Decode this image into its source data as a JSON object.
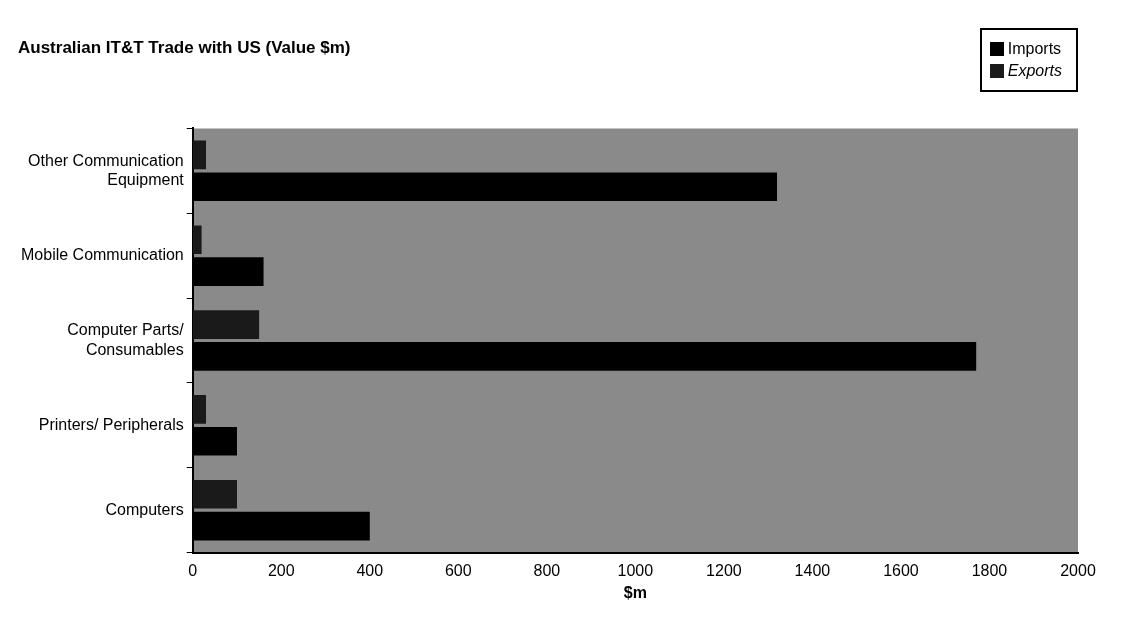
{
  "chart_data": {
    "type": "bar",
    "orientation": "horizontal",
    "title": "Australian IT&T Trade with US (Value $m)",
    "xlabel": "$m",
    "categories": [
      "Other Communication Equipment",
      "Mobile Communication",
      "Computer Parts/ Consumables",
      "Printers/ Peripherals",
      "Computers"
    ],
    "series": [
      {
        "name": "Imports",
        "color": "#000000",
        "values": [
          1320,
          160,
          1770,
          100,
          400
        ]
      },
      {
        "name": "Exports",
        "color": "#1a1a1a",
        "values": [
          30,
          20,
          150,
          30,
          100
        ]
      }
    ],
    "xlim": [
      0,
      2000
    ],
    "xticks": [
      0,
      200,
      400,
      600,
      800,
      1000,
      1200,
      1400,
      1600,
      1800,
      2000
    ],
    "grid": false,
    "legend": "top right"
  }
}
